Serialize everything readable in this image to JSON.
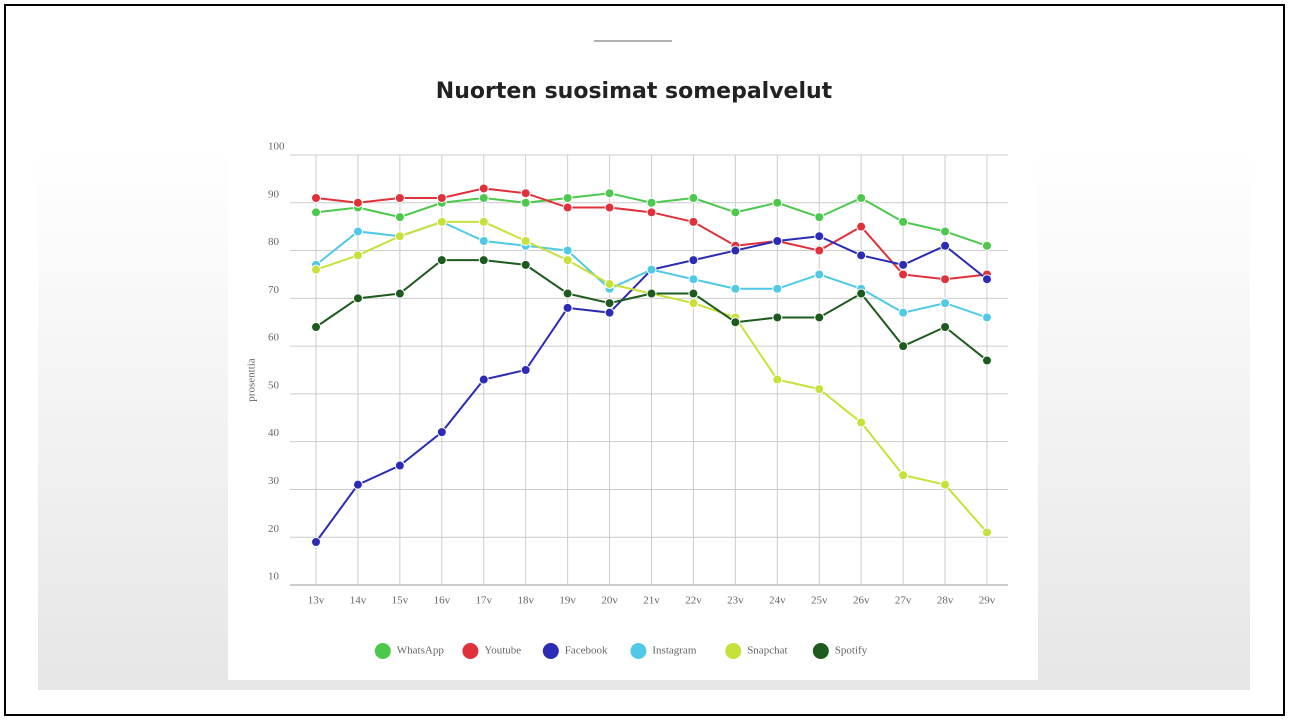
{
  "chart_data": {
    "type": "line",
    "title": "Nuorten suosimat somepalvelut",
    "y_label": "prosenttia",
    "categories": [
      "13v",
      "14v",
      "15v",
      "16v",
      "17v",
      "18v",
      "19v",
      "20v",
      "21v",
      "22v",
      "23v",
      "24v",
      "25v",
      "26v",
      "27v",
      "28v",
      "29v"
    ],
    "ylim": [
      10,
      100
    ],
    "yticks": [
      10,
      20,
      30,
      40,
      50,
      60,
      70,
      80,
      90,
      100
    ],
    "grid": true,
    "legend": "bottom",
    "series": [
      {
        "name": "WhatsApp",
        "color": "#4cc94c",
        "values": [
          88,
          89,
          87,
          90,
          91,
          90,
          91,
          92,
          90,
          91,
          88,
          90,
          87,
          91,
          86,
          84,
          81
        ]
      },
      {
        "name": "Youtube",
        "color": "#e0303a",
        "values": [
          91,
          90,
          91,
          91,
          93,
          92,
          89,
          89,
          88,
          86,
          81,
          82,
          80,
          85,
          75,
          74,
          75
        ]
      },
      {
        "name": "Facebook",
        "color": "#2b2bb5",
        "values": [
          19,
          31,
          35,
          42,
          53,
          55,
          68,
          67,
          76,
          78,
          80,
          82,
          83,
          79,
          77,
          81,
          74
        ]
      },
      {
        "name": "Instagram",
        "color": "#4fc9e6",
        "values": [
          77,
          84,
          83,
          86,
          82,
          81,
          80,
          72,
          76,
          74,
          72,
          72,
          75,
          72,
          67,
          69,
          66
        ]
      },
      {
        "name": "Snapchat",
        "color": "#c8e03a",
        "values": [
          76,
          79,
          83,
          86,
          86,
          82,
          78,
          73,
          71,
          69,
          66,
          53,
          51,
          44,
          33,
          31,
          21
        ]
      },
      {
        "name": "Spotify",
        "color": "#1d5a1d",
        "values": [
          64,
          70,
          71,
          78,
          78,
          77,
          71,
          69,
          71,
          71,
          65,
          66,
          66,
          71,
          60,
          64,
          57
        ]
      }
    ]
  }
}
